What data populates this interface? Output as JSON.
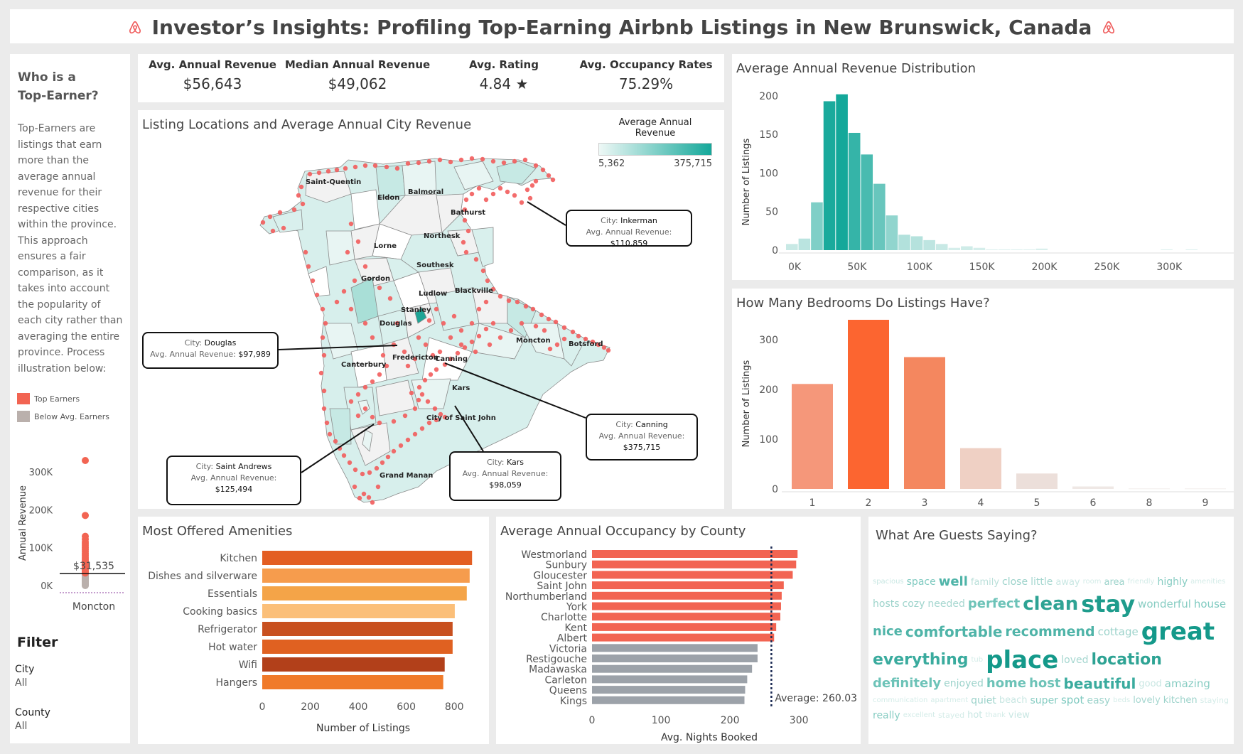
{
  "header": {
    "title": "Investor’s Insights: Profiling Top-Earning Airbnb Listings in New Brunswick, Canada",
    "logo_icon": "airbnb-logo-icon",
    "brand_color": "#ef5b5b"
  },
  "sidebar": {
    "heading": "Who is a Top-Earner?",
    "description": "Top-Earners are listings that earn more than the average annual revenue for their respective cities within the province. This approach ensures a fair comparison, as it takes into account the popularity of each city rather than averaging the entire province. Process illustration below:",
    "legend": [
      {
        "label": "Top Earners",
        "color": "#f26452"
      },
      {
        "label": "Below Avg. Earners",
        "color": "#bab0ac"
      }
    ],
    "filter_title": "Filter",
    "filters": [
      {
        "label": "City",
        "value": "All"
      },
      {
        "label": "County",
        "value": "All"
      }
    ]
  },
  "kpis": [
    {
      "label": "Avg. Annual Revenue",
      "value": "$56,643"
    },
    {
      "label": "Median Annual Revenue",
      "value": "$49,062"
    },
    {
      "label": "Avg. Rating",
      "value": "4.84 ★"
    },
    {
      "label": "Avg. Occupancy Rates",
      "value": "75.29%"
    }
  ],
  "map": {
    "title": "Listing Locations and Average Annual City Revenue",
    "legend_title": "Average Annual Revenue",
    "legend_min": "5,362",
    "legend_max": "375,715",
    "place_labels": [
      "Saint-Quentin",
      "Eldon",
      "Balmoral",
      "Bathurst",
      "Northesk",
      "Lorne",
      "Southesk",
      "Gordon",
      "Ludlow",
      "Blackville",
      "Stanley",
      "Douglas",
      "Moncton",
      "Botsford",
      "Fredericton",
      "Canning",
      "Canterbury",
      "Kars",
      "City of Saint John",
      "Grand Manan"
    ],
    "callouts": [
      {
        "city_label": "City:",
        "city": "Inkerman",
        "rev_label": "Avg. Annual Revenue:",
        "rev": "$110,859"
      },
      {
        "city_label": "City:",
        "city": "Douglas",
        "rev_label": "Avg. Annual Revenue:",
        "rev": "$97,989"
      },
      {
        "city_label": "City:",
        "city": "Canning",
        "rev_label": "Avg. Annual Revenue:",
        "rev": "$375,715"
      },
      {
        "city_label": "City:",
        "city": "Saint Andrews",
        "rev_label": "Avg. Annual Revenue:",
        "rev": "$125,494"
      },
      {
        "city_label": "City:",
        "city": "Kars",
        "rev_label": "Avg. Annual Revenue:",
        "rev": "$98,059"
      }
    ]
  },
  "chart_data": [
    {
      "id": "strip",
      "type": "scatter",
      "ylabel": "Annual Revenue",
      "categories": [
        "Moncton"
      ],
      "ytick_labels": [
        "0K",
        "100K",
        "200K",
        "300K"
      ],
      "ylim": [
        0,
        330000
      ],
      "reference_line_label": "$31,535",
      "reference_value": 31535,
      "below_points": [
        0,
        1500,
        3000,
        5000,
        7000,
        9000,
        11000,
        13000,
        15000,
        17000,
        19000,
        21000,
        23000,
        25000,
        27000,
        29000,
        30500
      ],
      "top_points": [
        33000,
        36000,
        39000,
        42000,
        45000,
        48000,
        51000,
        54000,
        57000,
        60000,
        63000,
        67000,
        71000,
        75000,
        80000,
        85000,
        90000,
        95000,
        100000,
        105000,
        110000,
        115000,
        122000,
        130000,
        185000,
        330000
      ]
    },
    {
      "id": "histogram",
      "type": "bar",
      "title": "Average Annual Revenue Distribution",
      "ylabel": "Number of Listings",
      "xtick_labels": [
        "0K",
        "50K",
        "100K",
        "150K",
        "200K",
        "250K",
        "300K"
      ],
      "ytick_labels": [
        "0",
        "50",
        "100",
        "150",
        "200"
      ],
      "ylim": [
        0,
        210
      ],
      "bin_width": 10000,
      "bin_starts": [
        0,
        10000,
        20000,
        30000,
        40000,
        50000,
        60000,
        70000,
        80000,
        90000,
        100000,
        110000,
        120000,
        130000,
        140000,
        150000,
        160000,
        170000,
        180000,
        190000,
        200000,
        300000,
        320000
      ],
      "values": [
        8,
        15,
        62,
        193,
        202,
        152,
        124,
        86,
        45,
        20,
        18,
        13,
        8,
        3,
        5,
        3,
        1,
        1,
        1,
        1,
        2,
        1,
        1
      ],
      "color_max": "#14a89a",
      "color_min": "#e6f4f2"
    },
    {
      "id": "bedrooms",
      "type": "bar",
      "title": "How Many Bedrooms Do Listings Have?",
      "ylabel": "Number of Listings",
      "categories": [
        "1",
        "2",
        "3",
        "4",
        "5",
        "6",
        "8",
        "9"
      ],
      "values": [
        211,
        340,
        265,
        82,
        31,
        5,
        1,
        1
      ],
      "colors": [
        "#f5977a",
        "#fc6530",
        "#f4875f",
        "#efd0c4",
        "#ecdfda",
        "#efe8e5",
        "#f2eeec",
        "#f2eeec"
      ],
      "ytick_labels": [
        "0",
        "100",
        "200",
        "300"
      ],
      "ylim": [
        0,
        360
      ]
    },
    {
      "id": "amenities",
      "type": "bar",
      "title": "Most Offered Amenities",
      "xlabel": "Number of Listings",
      "categories": [
        "Kitchen",
        "Dishes and silverware",
        "Essentials",
        "Cooking basics",
        "Refrigerator",
        "Hot water",
        "Wifi",
        "Hangers"
      ],
      "values": [
        874,
        864,
        852,
        802,
        793,
        793,
        760,
        754
      ],
      "colors": [
        "#e35e23",
        "#f69c4d",
        "#f4a448",
        "#fbbf79",
        "#c8501f",
        "#e06121",
        "#b2401a",
        "#f07a2a"
      ],
      "xtick_labels": [
        "0",
        "200",
        "400",
        "600",
        "800"
      ],
      "xlim": [
        0,
        900
      ]
    },
    {
      "id": "occupancy",
      "type": "bar",
      "title": "Average Annual Occupancy by County",
      "xlabel": "Avg. Nights Booked",
      "categories": [
        "Westmorland",
        "Sunbury",
        "Gloucester",
        "Saint John",
        "Northumberland",
        "York",
        "Charlotte",
        "Kent",
        "Albert",
        "Victoria",
        "Restigouche",
        "Madawaska",
        "Carleton",
        "Queens",
        "Kings"
      ],
      "values": [
        298,
        296,
        291,
        278,
        275,
        274,
        273,
        267,
        264,
        240,
        240,
        232,
        225,
        222,
        221
      ],
      "above_color": "#f26452",
      "below_color": "#9ca2a9",
      "average": 260.03,
      "average_label": "Average: 260.03",
      "xtick_labels": [
        "0",
        "100",
        "200",
        "300"
      ],
      "xlim": [
        0,
        340
      ]
    }
  ],
  "wordcloud": {
    "title": "What Are Guests Saying?",
    "words": [
      {
        "text": "spacious",
        "size": 10,
        "color": "#c9e7e3"
      },
      {
        "text": "space",
        "size": 14,
        "color": "#7fcac0"
      },
      {
        "text": "well",
        "size": 18,
        "color": "#4fb4a8"
      },
      {
        "text": "family",
        "size": 13,
        "color": "#b9dfd9"
      },
      {
        "text": "close",
        "size": 14,
        "color": "#9dd3cb"
      },
      {
        "text": "little",
        "size": 14,
        "color": "#a6d7d0"
      },
      {
        "text": "away",
        "size": 13,
        "color": "#c9e7e3"
      },
      {
        "text": "room",
        "size": 10,
        "color": "#d4ece8"
      },
      {
        "text": "area",
        "size": 13,
        "color": "#9dd3cb"
      },
      {
        "text": "friendly",
        "size": 10,
        "color": "#d4ece8"
      },
      {
        "text": "highly",
        "size": 14,
        "color": "#88cdc3"
      },
      {
        "text": "amenities",
        "size": 10,
        "color": "#d4ece8"
      },
      {
        "text": "hosts",
        "size": 14,
        "color": "#9dd3cb"
      },
      {
        "text": "cozy",
        "size": 14,
        "color": "#9dd3cb"
      },
      {
        "text": "needed",
        "size": 14,
        "color": "#a6d7d0"
      },
      {
        "text": "perfect",
        "size": 18,
        "color": "#6dc3b8"
      },
      {
        "text": "clean",
        "size": 26,
        "color": "#2ea394"
      },
      {
        "text": "stay",
        "size": 32,
        "color": "#1e9c8c"
      },
      {
        "text": "wonderful",
        "size": 15,
        "color": "#88cdc3"
      },
      {
        "text": "house",
        "size": 15,
        "color": "#7fcac0"
      },
      {
        "text": "nice",
        "size": 18,
        "color": "#4fb4a8"
      },
      {
        "text": "comfortable",
        "size": 20,
        "color": "#4fb4a8"
      },
      {
        "text": "recommend",
        "size": 19,
        "color": "#4fb4a8"
      },
      {
        "text": "cottage",
        "size": 15,
        "color": "#9dd3cb"
      },
      {
        "text": "great",
        "size": 34,
        "color": "#14998a"
      },
      {
        "text": "everything",
        "size": 22,
        "color": "#3aab9e"
      },
      {
        "text": "tub",
        "size": 10,
        "color": "#d4ece8"
      },
      {
        "text": "place",
        "size": 34,
        "color": "#14998a"
      },
      {
        "text": "loved",
        "size": 14,
        "color": "#a6d7d0"
      },
      {
        "text": "location",
        "size": 22,
        "color": "#2ea394"
      },
      {
        "text": "definitely",
        "size": 18,
        "color": "#6dc3b8"
      },
      {
        "text": "enjoyed",
        "size": 14,
        "color": "#9dd3cb"
      },
      {
        "text": "home",
        "size": 18,
        "color": "#6dc3b8"
      },
      {
        "text": "host",
        "size": 18,
        "color": "#6dc3b8"
      },
      {
        "text": "beautiful",
        "size": 20,
        "color": "#3aab9e"
      },
      {
        "text": "good",
        "size": 13,
        "color": "#c9e7e3"
      },
      {
        "text": "amazing",
        "size": 15,
        "color": "#88cdc3"
      },
      {
        "text": "communication",
        "size": 10,
        "color": "#d4ece8"
      },
      {
        "text": "apartment",
        "size": 10,
        "color": "#d4ece8"
      },
      {
        "text": "quiet",
        "size": 14,
        "color": "#9dd3cb"
      },
      {
        "text": "beach",
        "size": 13,
        "color": "#c9e7e3"
      },
      {
        "text": "super",
        "size": 14,
        "color": "#88cdc3"
      },
      {
        "text": "spot",
        "size": 15,
        "color": "#7fcac0"
      },
      {
        "text": "easy",
        "size": 14,
        "color": "#9dd3cb"
      },
      {
        "text": "beds",
        "size": 10,
        "color": "#d4ece8"
      },
      {
        "text": "lovely",
        "size": 13,
        "color": "#a6d7d0"
      },
      {
        "text": "kitchen",
        "size": 13,
        "color": "#9dd3cb"
      },
      {
        "text": "staying",
        "size": 11,
        "color": "#d4ece8"
      },
      {
        "text": "really",
        "size": 14,
        "color": "#88cdc3"
      },
      {
        "text": "excellent",
        "size": 10,
        "color": "#d4ece8"
      },
      {
        "text": "stayed",
        "size": 11,
        "color": "#d4ece8"
      },
      {
        "text": "hot",
        "size": 13,
        "color": "#c9e7e3"
      },
      {
        "text": "thank",
        "size": 10,
        "color": "#d4ece8"
      },
      {
        "text": "view",
        "size": 13,
        "color": "#c9e7e3"
      }
    ]
  }
}
